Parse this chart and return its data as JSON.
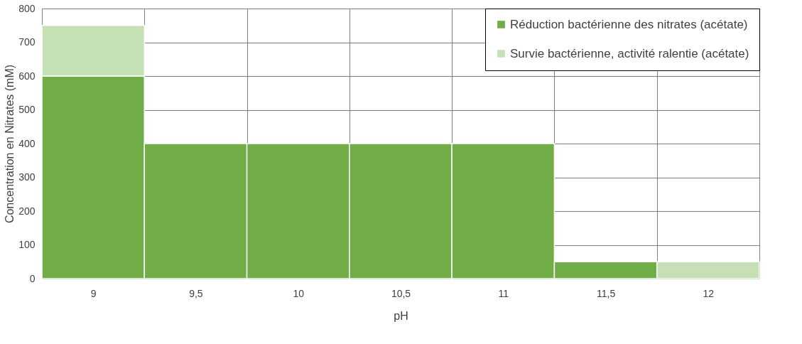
{
  "chart_data": {
    "type": "bar",
    "stacked": true,
    "xlabel": "pH",
    "ylabel": "Concentration en Nitrates (mM)",
    "categories": [
      "9",
      "9,5",
      "10",
      "10,5",
      "11",
      "11,5",
      "12"
    ],
    "series": [
      {
        "name": "Réduction bactérienne des nitrates (acétate)",
        "color": "#70ad47",
        "values": [
          600,
          400,
          400,
          400,
          400,
          50,
          0
        ]
      },
      {
        "name": "Survie bactérienne, activité ralentie (acétate)",
        "color": "#c5e0b4",
        "values": [
          150,
          0,
          0,
          0,
          0,
          0,
          50
        ]
      }
    ],
    "ylim": [
      0,
      800
    ],
    "yticks": [
      0,
      100,
      200,
      300,
      400,
      500,
      600,
      700,
      800
    ],
    "grid": true,
    "legend": "top right"
  }
}
